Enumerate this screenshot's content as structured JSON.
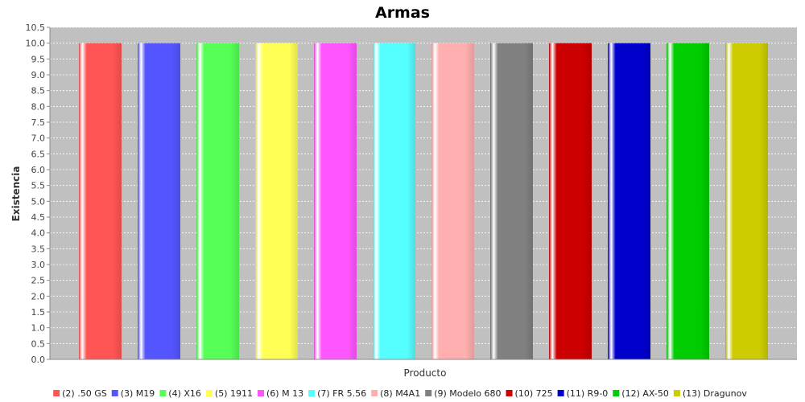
{
  "chart_data": {
    "type": "bar",
    "title": "Armas",
    "xlabel": "Producto",
    "ylabel": "Existencia",
    "ylim": [
      0,
      10.5
    ],
    "ytick_step": 0.5,
    "grid": true,
    "legend_position": "bottom",
    "background_color": "#c0c0c0",
    "series": [
      {
        "name": "(2) .50 GS",
        "value": 10,
        "color": "#ff5555"
      },
      {
        "name": "(3) M19",
        "value": 10,
        "color": "#5555ff"
      },
      {
        "name": "(4) X16",
        "value": 10,
        "color": "#55ff55"
      },
      {
        "name": "(5) 1911",
        "value": 10,
        "color": "#ffff55"
      },
      {
        "name": "(6) M 13",
        "value": 10,
        "color": "#ff55ff"
      },
      {
        "name": "(7) FR 5.56",
        "value": 10,
        "color": "#55ffff"
      },
      {
        "name": "(8) M4A1",
        "value": 10,
        "color": "#ffafaf"
      },
      {
        "name": "(9) Modelo 680",
        "value": 10,
        "color": "#808080"
      },
      {
        "name": "(10) 725",
        "value": 10,
        "color": "#cc0000"
      },
      {
        "name": "(11) R9-0",
        "value": 10,
        "color": "#0000cc"
      },
      {
        "name": "(12) AX-50",
        "value": 10,
        "color": "#00cc00"
      },
      {
        "name": "(13) Dragunov",
        "value": 10,
        "color": "#cccc00"
      }
    ]
  }
}
